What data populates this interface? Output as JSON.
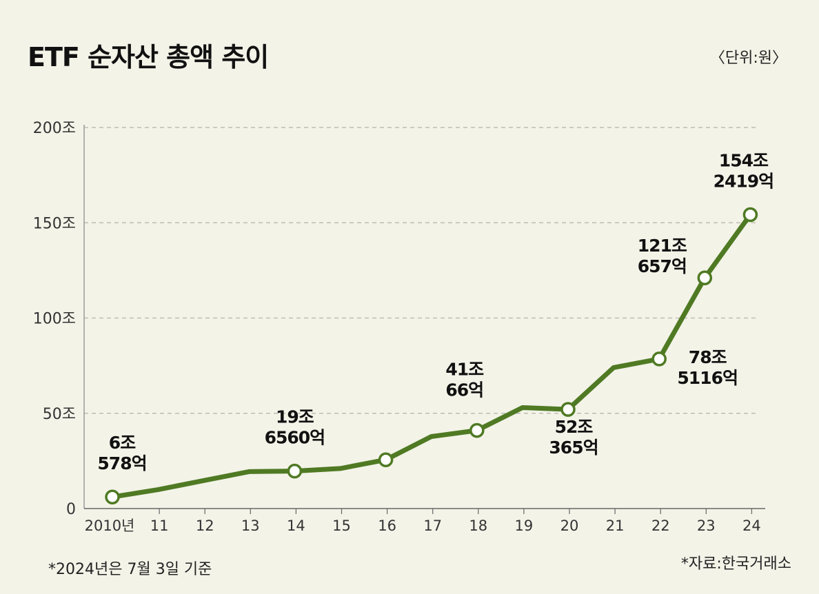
{
  "header": {
    "title": "ETF 순자산 총액 추이",
    "unit": "〈단위:원〉"
  },
  "footer": {
    "note": "*2024년은 7월 3일 기준",
    "source": "*자료:한국거래소"
  },
  "colors": {
    "line": "#4f7a23",
    "marker_fill": "#ffffff",
    "grid": "#bdbdb5",
    "background": "#f3f3e8"
  },
  "chart_data": {
    "type": "line",
    "title": "ETF 순자산 총액 추이",
    "ylim": [
      0,
      200
    ],
    "yticks": [
      0,
      50,
      100,
      150,
      200
    ],
    "ytick_labels": [
      "0",
      "50조",
      "100조",
      "150조",
      "200조"
    ],
    "grid": "horizontal dashed",
    "categories": [
      "2010년",
      "11",
      "12",
      "13",
      "14",
      "15",
      "16",
      "17",
      "18",
      "19",
      "20",
      "21",
      "22",
      "23",
      "24"
    ],
    "series": [
      {
        "values": [
          6.06,
          9.9,
          14.7,
          19.4,
          19.66,
          21.0,
          25.6,
          37.8,
          41.01,
          53.0,
          52.04,
          74.0,
          78.51,
          121.07,
          154.24
        ]
      }
    ],
    "markers": [
      0,
      4,
      6,
      8,
      10,
      12,
      13,
      14
    ],
    "annotations": [
      {
        "index": 0,
        "line1": "6조",
        "line2": "578억"
      },
      {
        "index": 4,
        "line1": "19조",
        "line2": "6560억"
      },
      {
        "index": 8,
        "line1": "41조",
        "line2": "66억"
      },
      {
        "index": 10,
        "line1": "52조",
        "line2": "365억"
      },
      {
        "index": 12,
        "line1": "78조",
        "line2": "5116억"
      },
      {
        "index": 13,
        "line1": "121조",
        "line2": "657억"
      },
      {
        "index": 14,
        "line1": "154조",
        "line2": "2419억"
      }
    ]
  }
}
